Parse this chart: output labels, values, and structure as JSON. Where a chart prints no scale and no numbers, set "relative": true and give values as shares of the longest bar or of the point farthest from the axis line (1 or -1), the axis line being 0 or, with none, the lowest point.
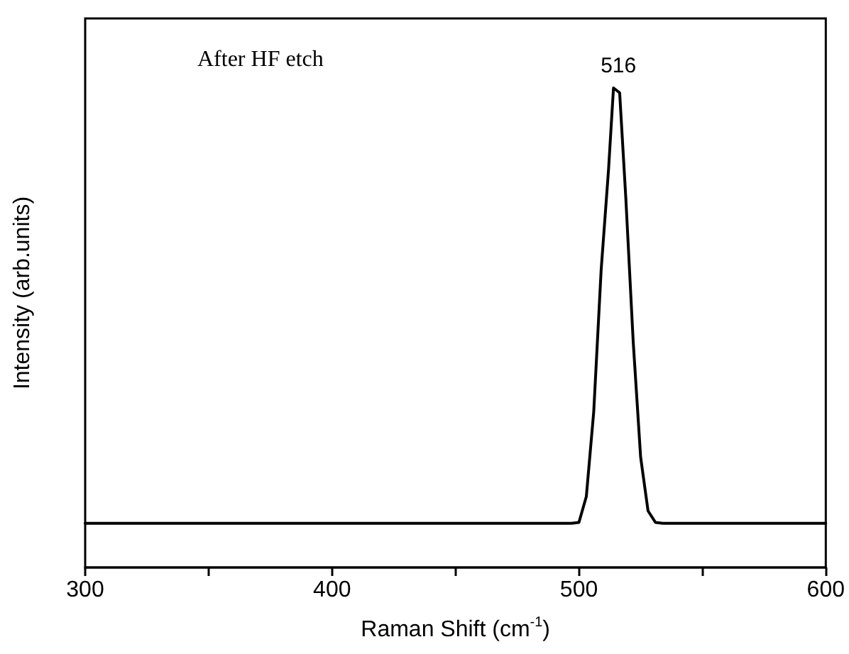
{
  "chart_data": {
    "type": "line",
    "relative": true,
    "xlabel": "Raman Shift (cm$^{-1}$)",
    "ylabel": "Intensity (arb.units)",
    "xlim": [
      300,
      600
    ],
    "xticks": [
      300,
      {
        "value": 350,
        "label": null
      },
      400,
      {
        "value": 450,
        "label": null
      },
      500,
      {
        "value": 550,
        "label": null
      },
      600
    ],
    "annotations": [
      "After HF etch",
      {
        "text": "516",
        "x": 516,
        "y": 1
      }
    ],
    "grid": false,
    "marker": "none",
    "line_style": "solid",
    "series": [
      {
        "color": "#000000",
        "x": [
          300,
          497,
          500,
          503,
          506,
          509,
          512,
          514,
          516.5,
          519,
          522,
          525,
          528,
          531,
          534,
          600
        ],
        "values": [
          0.092,
          0.092,
          0.094,
          0.148,
          0.325,
          0.62,
          0.83,
          1.0,
          0.99,
          0.77,
          0.47,
          0.23,
          0.118,
          0.094,
          0.092,
          0.092
        ]
      }
    ]
  }
}
